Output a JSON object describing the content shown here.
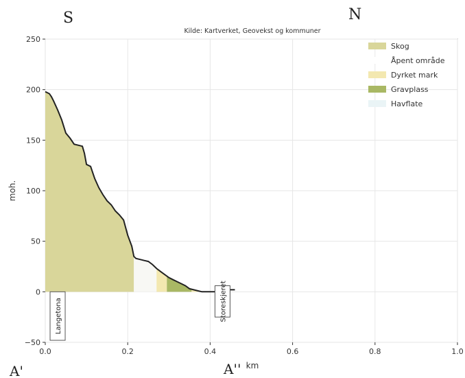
{
  "annotations": {
    "top_left": "S",
    "top_right": "N",
    "bottom_left": "A'",
    "bottom_mid": "A''"
  },
  "chart_data": {
    "type": "area",
    "title": "Kilde: Kartverket, Geovekst og kommuner",
    "xlabel": "km",
    "ylabel": "moh.",
    "xlim": [
      0.0,
      1.0
    ],
    "ylim": [
      -50,
      250
    ],
    "xticks": [
      "0.0",
      "0.2",
      "0.4",
      "0.6",
      "0.8",
      "1.0"
    ],
    "yticks": [
      "−50",
      "0",
      "50",
      "100",
      "150",
      "200",
      "250"
    ],
    "grid": true,
    "legend_position": "top-right",
    "legend": [
      {
        "name": "Skog",
        "color": "#d9d69a"
      },
      {
        "name": "Åpent område",
        "color": "#ffffff"
      },
      {
        "name": "Dyrket mark",
        "color": "#f3e8b0"
      },
      {
        "name": "Gravplass",
        "color": "#a9b864"
      },
      {
        "name": "Havflate",
        "color": "#eaf4f6"
      }
    ],
    "profile": {
      "x": [
        0.0,
        0.005,
        0.01,
        0.015,
        0.02,
        0.03,
        0.04,
        0.05,
        0.06,
        0.07,
        0.08,
        0.09,
        0.095,
        0.1,
        0.11,
        0.12,
        0.13,
        0.14,
        0.15,
        0.16,
        0.17,
        0.18,
        0.19,
        0.2,
        0.21,
        0.215,
        0.22,
        0.23,
        0.24,
        0.25,
        0.26,
        0.27,
        0.28,
        0.29,
        0.3,
        0.31,
        0.32,
        0.33,
        0.34,
        0.35,
        0.36,
        0.37,
        0.38,
        0.39,
        0.4,
        0.41,
        0.42,
        0.43,
        0.44,
        0.45,
        0.46
      ],
      "y": [
        198,
        197,
        196,
        193,
        189,
        180,
        170,
        157,
        152,
        146,
        145,
        144,
        137,
        126,
        124,
        112,
        103,
        96,
        90,
        86,
        80,
        76,
        71,
        56,
        45,
        35,
        33,
        32,
        31,
        30,
        27,
        23,
        20,
        17,
        14,
        12,
        10,
        8,
        6,
        3,
        2,
        1,
        0,
        0,
        0,
        0,
        1,
        1,
        2,
        2,
        2
      ]
    },
    "landcover": [
      {
        "class": "Skog",
        "x0": 0.0,
        "x1": 0.215
      },
      {
        "class": "Åpent område",
        "x0": 0.215,
        "x1": 0.27
      },
      {
        "class": "Dyrket mark",
        "x0": 0.27,
        "x1": 0.295
      },
      {
        "class": "Gravplass",
        "x0": 0.295,
        "x1": 0.355
      },
      {
        "class": "Dyrket mark",
        "x0": 0.355,
        "x1": 0.37
      }
    ],
    "place_labels": [
      {
        "name": "Langetona",
        "x": 0.03
      },
      {
        "name": "Storeskjeret",
        "x": 0.43
      }
    ]
  }
}
